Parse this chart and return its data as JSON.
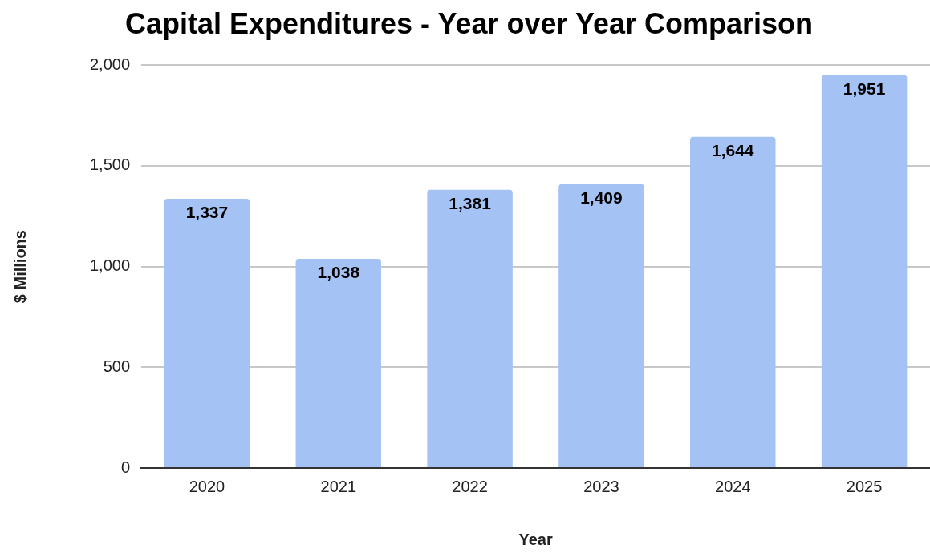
{
  "chart_data": {
    "type": "bar",
    "title": "Capital Expenditures - Year over Year Comparison",
    "xlabel": "Year",
    "ylabel": "$ Millions",
    "categories": [
      "2020",
      "2021",
      "2022",
      "2023",
      "2024",
      "2025"
    ],
    "values": [
      1337,
      1038,
      1381,
      1409,
      1644,
      1951
    ],
    "color": "#a4c2f4",
    "value_labels": [
      "1,337",
      "1,038",
      "1,381",
      "1,409",
      "1,644",
      "1,951"
    ],
    "ylim": [
      0,
      2000
    ],
    "yticks": [
      0,
      500,
      {
        "value": 1000,
        "label": "1,000"
      },
      {
        "value": 1500,
        "label": "1,500"
      },
      {
        "value": 2000,
        "label": "2,000"
      }
    ],
    "grid": "y",
    "legend": false
  }
}
